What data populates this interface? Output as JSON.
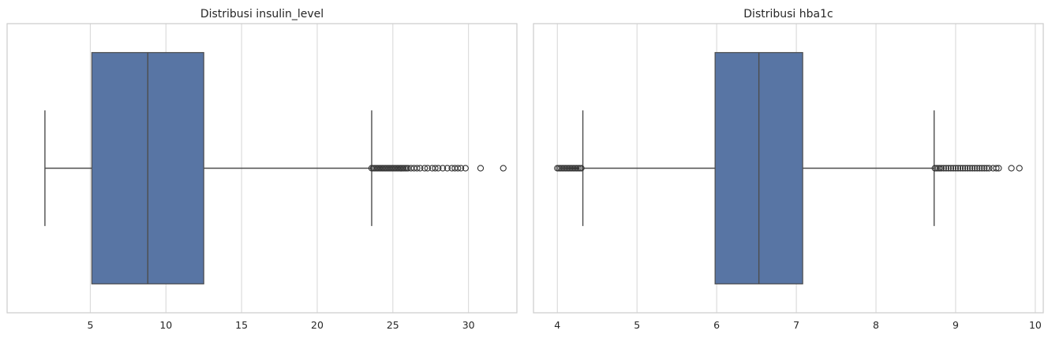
{
  "chart_data": [
    {
      "type": "boxplot",
      "title": "Distribusi insulin_level",
      "xlim": [
        -0.5,
        33.2
      ],
      "xticks": [
        5,
        10,
        15,
        20,
        25,
        30
      ],
      "xtick_labels": [
        "5",
        "10",
        "15",
        "20",
        "25",
        "30"
      ],
      "grid": true,
      "box": {
        "whisker_low": 2.0,
        "q1": 5.1,
        "median": 8.8,
        "q3": 12.5,
        "whisker_high": 23.6
      },
      "outliers": [
        23.6,
        23.7,
        23.8,
        23.9,
        24.0,
        24.1,
        24.2,
        24.3,
        24.4,
        24.5,
        24.6,
        24.7,
        24.8,
        24.9,
        25.0,
        25.1,
        25.2,
        25.3,
        25.4,
        25.5,
        25.6,
        25.7,
        25.8,
        25.9,
        26.0,
        26.2,
        26.4,
        26.6,
        26.8,
        27.1,
        27.3,
        27.6,
        27.8,
        28.0,
        28.3,
        28.6,
        28.9,
        29.1,
        29.3,
        29.5,
        29.8,
        30.8,
        32.3
      ]
    },
    {
      "type": "boxplot",
      "title": "Distribusi hba1c",
      "xlim": [
        3.7,
        10.1
      ],
      "xticks": [
        4,
        5,
        6,
        7,
        8,
        9,
        10
      ],
      "xtick_labels": [
        "4",
        "5",
        "6",
        "7",
        "8",
        "9",
        "10"
      ],
      "grid": true,
      "box": {
        "whisker_low": 4.32,
        "q1": 5.98,
        "median": 6.53,
        "q3": 7.08,
        "whisker_high": 8.73
      },
      "outliers": [
        4.0,
        4.02,
        4.04,
        4.06,
        4.08,
        4.1,
        4.12,
        4.14,
        4.16,
        4.18,
        4.2,
        4.22,
        4.24,
        4.26,
        4.28,
        4.3,
        8.74,
        8.76,
        8.78,
        8.8,
        8.82,
        8.85,
        8.88,
        8.91,
        8.94,
        8.97,
        9.0,
        9.03,
        9.06,
        9.09,
        9.12,
        9.15,
        9.18,
        9.21,
        9.24,
        9.27,
        9.3,
        9.33,
        9.36,
        9.39,
        9.42,
        9.47,
        9.51,
        9.54,
        9.7,
        9.8
      ]
    }
  ],
  "colors": {
    "box_fill": "#5875a4",
    "line": "#4d4d4d",
    "grid": "#d9d9d9",
    "frame": "#cccccc",
    "outlier": "#333333",
    "background": "#ffffff"
  }
}
